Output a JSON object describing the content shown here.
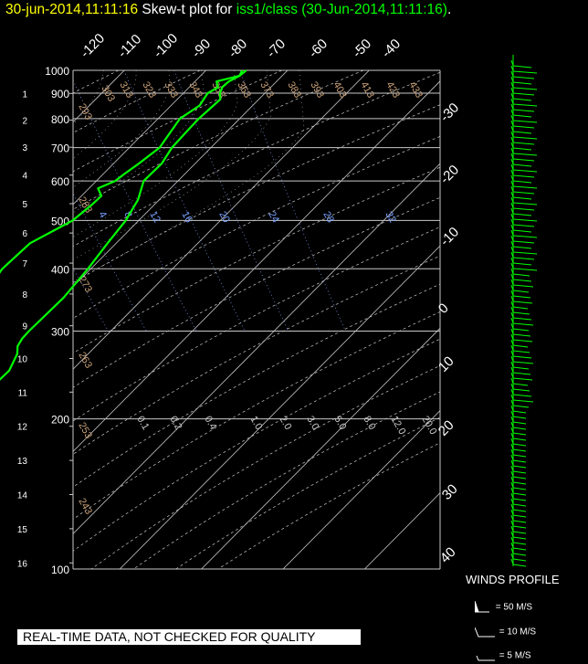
{
  "header": {
    "date_time": "30-jun-2014,11:11:16",
    "title_prefix": "Skew-t plot for",
    "station": "iss1/class (30-Jun-2014,11:11:16)",
    "title_suffix": "."
  },
  "colors": {
    "date_time": "#ffff00",
    "title": "#ffffff",
    "station": "#00ff00",
    "grid": "#c8c8c8",
    "isotherm_labels": "#ffffff",
    "dry_adiabat_labels": "#c8a078",
    "mixing_ratio_labels": "#78a0ff",
    "sat_adiabat_labels": "#c8c8c8",
    "sounding": "#00ff00",
    "wind_barbs": "#00ff00"
  },
  "chart_data": {
    "type": "line",
    "chart_kind": "skew-t log-p diagram",
    "y_axis": {
      "label": "pressure (mb)",
      "scale": "log",
      "range": [
        1000,
        100
      ],
      "ticks": [
        100,
        200,
        300,
        400,
        500,
        600,
        700,
        800,
        900,
        1000
      ]
    },
    "height_axis": {
      "label": "height (km)",
      "ticks": [
        1,
        2,
        3,
        4,
        5,
        6,
        7,
        8,
        9,
        10,
        11,
        12,
        13,
        14,
        15,
        16
      ]
    },
    "temperature_top_labels": [
      "-120",
      "-110",
      "-100",
      "-90",
      "-80",
      "-70",
      "-60",
      "-50",
      "-40"
    ],
    "temperature_right_labels": [
      "-30",
      "-20",
      "-10",
      "0",
      "10",
      "20",
      "30",
      "40"
    ],
    "dry_adiabat_labels": [
      "303",
      "313",
      "323",
      "333",
      "343",
      "353",
      "363",
      "373",
      "383",
      "393",
      "403",
      "413",
      "423",
      "433",
      "293",
      "283",
      "273",
      "263",
      "253",
      "243"
    ],
    "mixing_ratio_labels": [
      "4",
      "8",
      "12",
      "16",
      "20",
      "24",
      "28",
      "32"
    ],
    "saturated_adiabat_labels": [
      "0.1",
      "0.2",
      "0.4",
      "1.0",
      "2.0",
      "3.0",
      "5.0",
      "8.0",
      "12.0",
      "20.0"
    ],
    "grid": true,
    "series": [
      {
        "kind": "temperature",
        "points": [
          [
            1000,
            25.5
          ],
          [
            975,
            24.0
          ],
          [
            950,
            22.0
          ],
          [
            925,
            20.5
          ],
          [
            900,
            19.5
          ],
          [
            875,
            18.8
          ],
          [
            850,
            17.2
          ],
          [
            800,
            13.8
          ],
          [
            750,
            10.5
          ],
          [
            700,
            7.0
          ],
          [
            650,
            3.8
          ],
          [
            600,
            -0.5
          ],
          [
            550,
            -3.5
          ],
          [
            500,
            -7.5
          ],
          [
            450,
            -12.5
          ],
          [
            400,
            -18.0
          ],
          [
            350,
            -24.5
          ],
          [
            300,
            -32.8
          ],
          [
            290,
            -34.5
          ],
          [
            280,
            -36.0
          ],
          [
            270,
            -37.0
          ],
          [
            250,
            -40.0
          ],
          [
            230,
            -44.5
          ],
          [
            200,
            -50.5
          ],
          [
            180,
            -55.0
          ],
          [
            160,
            -59.0
          ],
          [
            150,
            -62.0
          ],
          [
            140,
            -64.0
          ],
          [
            130,
            -65.0
          ],
          [
            120,
            -67.5
          ],
          [
            110,
            -69.5
          ],
          [
            100,
            -69.0
          ]
        ]
      },
      {
        "kind": "dew_point",
        "points": [
          [
            1000,
            25.0
          ],
          [
            975,
            24.0
          ],
          [
            950,
            20.5
          ],
          [
            925,
            20.0
          ],
          [
            900,
            18.0
          ],
          [
            850,
            15.5
          ],
          [
            800,
            11.5
          ],
          [
            700,
            5.5
          ],
          [
            650,
            1.0
          ],
          [
            620,
            -2.0
          ],
          [
            600,
            -4.0
          ],
          [
            580,
            -7.0
          ],
          [
            560,
            -7.5
          ],
          [
            540,
            -9.5
          ],
          [
            500,
            -14.0
          ],
          [
            450,
            -22.0
          ],
          [
            400,
            -28.5
          ],
          [
            350,
            -34.5
          ],
          [
            320,
            -38.0
          ],
          [
            300,
            -42.0
          ],
          [
            290,
            -48.0
          ],
          [
            280,
            -50.0
          ],
          [
            250,
            -57.0
          ],
          [
            220,
            -63.0
          ],
          [
            200,
            -67.5
          ],
          [
            180,
            -72.0
          ],
          [
            160,
            -77.0
          ],
          [
            150,
            -80.0
          ],
          [
            140,
            -84.0
          ],
          [
            130,
            -85.0
          ],
          [
            120,
            -87.0
          ],
          [
            110,
            -85.5
          ],
          [
            100,
            -83.0
          ]
        ]
      }
    ]
  },
  "wind_profile": {
    "label": "WINDS PROFILE",
    "legend": [
      {
        "symbol": "pennant",
        "text": "= 50 M/S"
      },
      {
        "symbol": "full-barb",
        "text": "= 10 M/S"
      },
      {
        "symbol": "half-barb",
        "text": "= 5 M/S"
      }
    ]
  },
  "banner": {
    "text": "REAL-TIME DATA, NOT CHECKED FOR QUALITY"
  }
}
